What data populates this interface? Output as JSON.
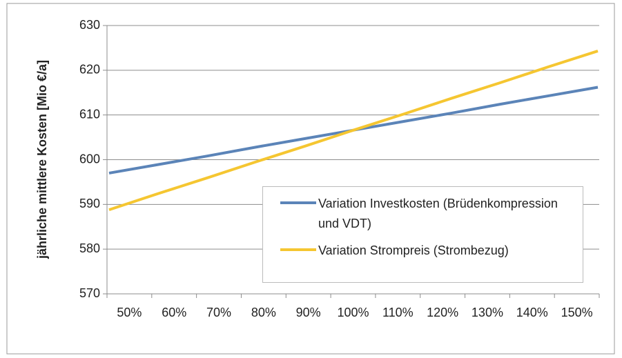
{
  "chart_data": {
    "type": "line",
    "y_label": "jährliche mittlere Kosten [Mio €/a]",
    "categories": [
      "50%",
      "60%",
      "70%",
      "80%",
      "90%",
      "100%",
      "110%",
      "120%",
      "130%",
      "140%",
      "150%"
    ],
    "series": [
      {
        "name": "Variation Investkosten (Brüdenkompression und VDT)",
        "color": "#5b84b8",
        "values": [
          597,
          598.9,
          600.8,
          602.8,
          604.7,
          606.6,
          608.5,
          610.4,
          612.4,
          614.3,
          616.2
        ]
      },
      {
        "name": "Variation Strompreis (Strombezug)",
        "color": "#f5c631",
        "values": [
          588.8,
          592.4,
          595.9,
          599.5,
          603.0,
          606.6,
          610.1,
          613.7,
          617.2,
          620.8,
          624.3
        ]
      }
    ],
    "ylim": [
      570,
      630
    ],
    "yticks": [
      570,
      580,
      590,
      600,
      610,
      620,
      630
    ],
    "grid": true
  }
}
